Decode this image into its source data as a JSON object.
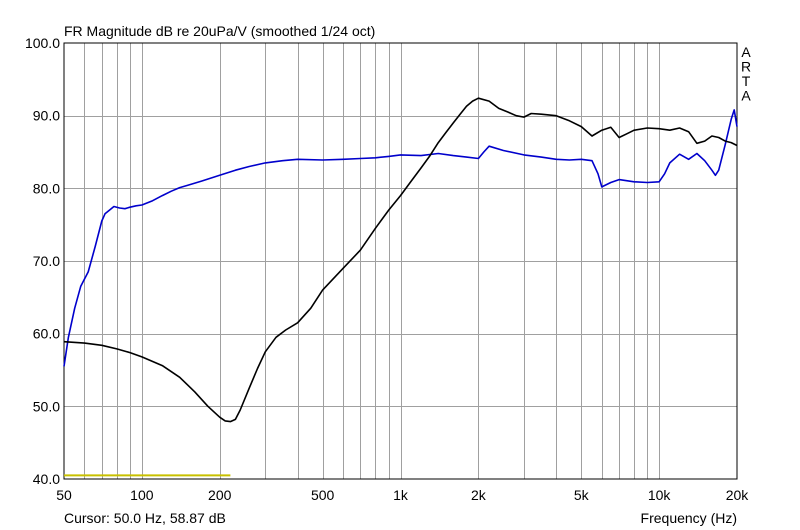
{
  "chart_data": {
    "type": "line",
    "title": "FR Magnitude dB re 20uPa/V (smoothed 1/24 oct)",
    "xlabel": "Frequency (Hz)",
    "ylabel": "",
    "x_scale": "log",
    "xlim": [
      50,
      20000
    ],
    "ylim": [
      40,
      100
    ],
    "grid": true,
    "x_ticks": [
      {
        "value": 50,
        "label": "50"
      },
      {
        "value": 100,
        "label": "100"
      },
      {
        "value": 200,
        "label": "200"
      },
      {
        "value": 500,
        "label": "500"
      },
      {
        "value": 1000,
        "label": "1k"
      },
      {
        "value": 2000,
        "label": "2k"
      },
      {
        "value": 5000,
        "label": "5k"
      },
      {
        "value": 10000,
        "label": "10k"
      },
      {
        "value": 20000,
        "label": "20k"
      }
    ],
    "y_ticks": [
      {
        "value": 40,
        "label": "40.0"
      },
      {
        "value": 50,
        "label": "50.0"
      },
      {
        "value": 60,
        "label": "60.0"
      },
      {
        "value": 70,
        "label": "70.0"
      },
      {
        "value": 80,
        "label": "80.0"
      },
      {
        "value": 90,
        "label": "90.0"
      },
      {
        "value": 100,
        "label": "100.0"
      }
    ],
    "cursor_text": "Cursor: 50.0 Hz, 58.87 dB",
    "brand_letters": [
      "A",
      "R",
      "T",
      "A"
    ],
    "series": [
      {
        "color": "#0000cc",
        "x": [
          50,
          52,
          55,
          58,
          62,
          66,
          70,
          72,
          75,
          78,
          82,
          86,
          90,
          95,
          100,
          110,
          120,
          130,
          140,
          150,
          170,
          200,
          230,
          260,
          300,
          350,
          400,
          500,
          600,
          700,
          800,
          900,
          1000,
          1200,
          1400,
          1600,
          1800,
          2000,
          2100,
          2200,
          2500,
          3000,
          3500,
          4000,
          4500,
          5000,
          5500,
          5800,
          6000,
          6500,
          7000,
          8000,
          9000,
          10000,
          10500,
          11000,
          12000,
          13000,
          14000,
          15000,
          16000,
          16500,
          17000,
          18000,
          19000,
          19500,
          20000
        ],
        "values": [
          55.5,
          59.5,
          63.5,
          66.5,
          68.5,
          72,
          75.5,
          76.5,
          77,
          77.5,
          77.3,
          77.2,
          77.4,
          77.6,
          77.7,
          78.3,
          79.0,
          79.6,
          80.1,
          80.4,
          81.0,
          81.8,
          82.5,
          83.0,
          83.5,
          83.8,
          84.0,
          83.9,
          84.0,
          84.1,
          84.2,
          84.4,
          84.6,
          84.5,
          84.8,
          84.5,
          84.3,
          84.1,
          85.0,
          85.8,
          85.2,
          84.6,
          84.3,
          84.0,
          83.9,
          84.0,
          83.8,
          82.0,
          80.2,
          80.8,
          81.2,
          80.9,
          80.8,
          80.9,
          82.0,
          83.5,
          84.7,
          84.0,
          84.8,
          83.8,
          82.5,
          81.8,
          82.5,
          86.0,
          89.5,
          90.8,
          88.5
        ]
      },
      {
        "color": "#000000",
        "x": [
          50,
          60,
          70,
          80,
          90,
          100,
          120,
          140,
          160,
          180,
          200,
          210,
          220,
          230,
          240,
          260,
          280,
          300,
          330,
          360,
          400,
          450,
          500,
          600,
          700,
          800,
          900,
          1000,
          1100,
          1200,
          1300,
          1400,
          1500,
          1600,
          1700,
          1800,
          1900,
          2000,
          2200,
          2400,
          2600,
          2800,
          3000,
          3200,
          3500,
          4000,
          4500,
          5000,
          5500,
          6000,
          6500,
          7000,
          7500,
          8000,
          9000,
          10000,
          11000,
          12000,
          13000,
          14000,
          15000,
          16000,
          17000,
          18000,
          19000,
          20000
        ],
        "values": [
          58.9,
          58.7,
          58.4,
          57.9,
          57.4,
          56.8,
          55.6,
          54.0,
          52.0,
          50.0,
          48.5,
          48.0,
          47.9,
          48.2,
          49.5,
          52.5,
          55.2,
          57.5,
          59.5,
          60.5,
          61.5,
          63.5,
          66.0,
          69.0,
          71.5,
          74.5,
          77.0,
          79.0,
          81.0,
          82.8,
          84.5,
          86.3,
          87.7,
          89.0,
          90.2,
          91.3,
          92.0,
          92.4,
          92.0,
          91.0,
          90.5,
          90.0,
          89.8,
          90.3,
          90.2,
          90.0,
          89.3,
          88.5,
          87.2,
          88.0,
          88.4,
          87.0,
          87.5,
          88.0,
          88.3,
          88.2,
          88.0,
          88.3,
          87.8,
          86.2,
          86.5,
          87.2,
          87.0,
          86.5,
          86.3,
          85.9
        ]
      },
      {
        "color": "#c8c000",
        "x": [
          50,
          220
        ],
        "values": [
          40.5,
          40.5
        ]
      }
    ]
  }
}
